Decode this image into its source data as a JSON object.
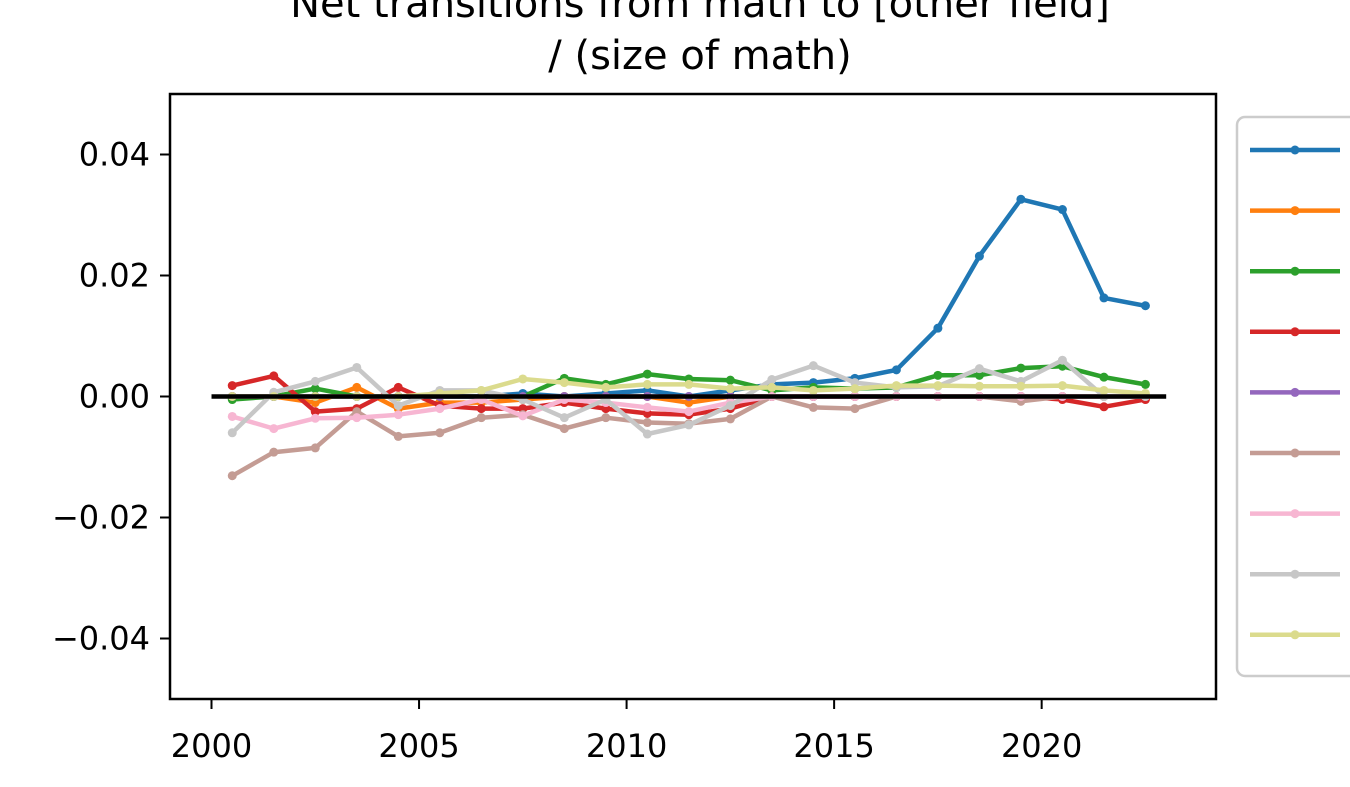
{
  "chart_data": {
    "type": "line",
    "title_lines": [
      "Net transitions from math to [other field]",
      "/ (size of math)"
    ],
    "xlabel": "",
    "ylabel": "",
    "xlim": [
      1999,
      2024.2
    ],
    "ylim": [
      -0.05,
      0.05
    ],
    "xticks": [
      2000,
      2005,
      2010,
      2015,
      2020
    ],
    "xtick_labels": [
      "2000",
      "2005",
      "2010",
      "2015",
      "2020"
    ],
    "yticks": [
      0.04,
      0.02,
      0.0,
      -0.02,
      -0.04
    ],
    "ytick_labels": [
      "0.04",
      "0.02",
      "0.00",
      "−0.02",
      "−0.04"
    ],
    "x": [
      2000.5,
      2001.5,
      2002.5,
      2003.5,
      2004.5,
      2005.5,
      2006.5,
      2007.5,
      2008.5,
      2009.5,
      2010.5,
      2011.5,
      2012.5,
      2013.5,
      2014.5,
      2015.5,
      2016.5,
      2017.5,
      2018.5,
      2019.5,
      2020.5,
      2021.5,
      2022.5
    ],
    "zero_line": {
      "from": 2000,
      "to": 2023,
      "y": 0,
      "color": "#000000"
    },
    "legend_position": "right, outside plot",
    "series": [
      {
        "color": "#1f77b4",
        "values": [
          0.0,
          0.0,
          0.0,
          0.0,
          0.0,
          0.0,
          0.0,
          0.0005,
          0.0,
          0.0005,
          0.001,
          0.0,
          0.001,
          0.002,
          0.0023,
          0.003,
          0.0044,
          0.0113,
          0.0232,
          0.0326,
          0.0309,
          0.0163,
          0.015
        ]
      },
      {
        "color": "#ff7f0e",
        "values": [
          0.0,
          0.0,
          -0.001,
          0.0015,
          -0.002,
          -0.001,
          -0.001,
          -0.0005,
          0.0,
          0.0,
          0.0,
          -0.001,
          0.0,
          0.0,
          0.0,
          0.0,
          0.0,
          0.0,
          0.0,
          0.0,
          0.0,
          0.0,
          0.0
        ]
      },
      {
        "color": "#2ca02c",
        "values": [
          -0.0005,
          0.0,
          0.0013,
          0.0,
          0.0,
          0.0,
          0.0,
          0.0,
          0.003,
          0.002,
          0.0037,
          0.0029,
          0.0027,
          0.001,
          0.0015,
          0.0013,
          0.0015,
          0.0035,
          0.0035,
          0.0047,
          0.005,
          0.0032,
          0.002
        ]
      },
      {
        "color": "#d62728",
        "values": [
          0.0018,
          0.0034,
          -0.0025,
          -0.002,
          0.0015,
          -0.0015,
          -0.002,
          -0.002,
          -0.001,
          -0.002,
          -0.0028,
          -0.003,
          -0.002,
          0.0,
          0.0,
          0.0,
          0.0,
          0.0,
          0.0,
          0.0,
          -0.0005,
          -0.0017,
          -0.0005
        ]
      },
      {
        "color": "#9467bd",
        "values": [
          0.0,
          0.0,
          0.0,
          0.0,
          0.0,
          0.0,
          0.0,
          0.0,
          0.0,
          0.0,
          0.0,
          0.0,
          0.0,
          0.0,
          0.0,
          0.0,
          0.0,
          0.0,
          0.0,
          0.0,
          0.0,
          0.0,
          0.0
        ]
      },
      {
        "color": "#c49c94",
        "values": [
          -0.0131,
          -0.0092,
          -0.0085,
          -0.0025,
          -0.0066,
          -0.006,
          -0.0035,
          -0.003,
          -0.0053,
          -0.0035,
          -0.0043,
          -0.0045,
          -0.0037,
          0.0,
          -0.0018,
          -0.002,
          0.0,
          0.0,
          0.0,
          -0.0008,
          0.0,
          0.0,
          0.0
        ]
      },
      {
        "color": "#f7b6d2",
        "values": [
          -0.0033,
          -0.0053,
          -0.0036,
          -0.0035,
          -0.003,
          -0.002,
          -0.0005,
          -0.0032,
          -0.0005,
          -0.001,
          -0.0018,
          -0.0025,
          -0.001,
          0.0,
          0.0,
          0.0,
          0.0,
          0.0,
          0.0,
          0.0,
          0.0,
          0.0,
          0.0
        ]
      },
      {
        "color": "#c7c7c7",
        "values": [
          -0.006,
          0.0007,
          0.0025,
          0.0048,
          -0.0015,
          0.001,
          0.001,
          -0.0005,
          -0.0035,
          -0.0005,
          -0.0062,
          -0.0047,
          -0.0015,
          0.0028,
          0.0051,
          0.0023,
          0.0015,
          0.0017,
          0.0046,
          0.0025,
          0.006,
          0.0,
          0.0
        ]
      },
      {
        "color": "#dbdb8d",
        "values": [
          0.0,
          0.0,
          0.0,
          0.0,
          0.0,
          0.0005,
          0.001,
          0.0029,
          0.0023,
          0.0015,
          0.002,
          0.002,
          0.0013,
          0.0015,
          0.001,
          0.0013,
          0.0018,
          0.0018,
          0.0017,
          0.0017,
          0.0018,
          0.001,
          0.0005
        ]
      }
    ]
  }
}
